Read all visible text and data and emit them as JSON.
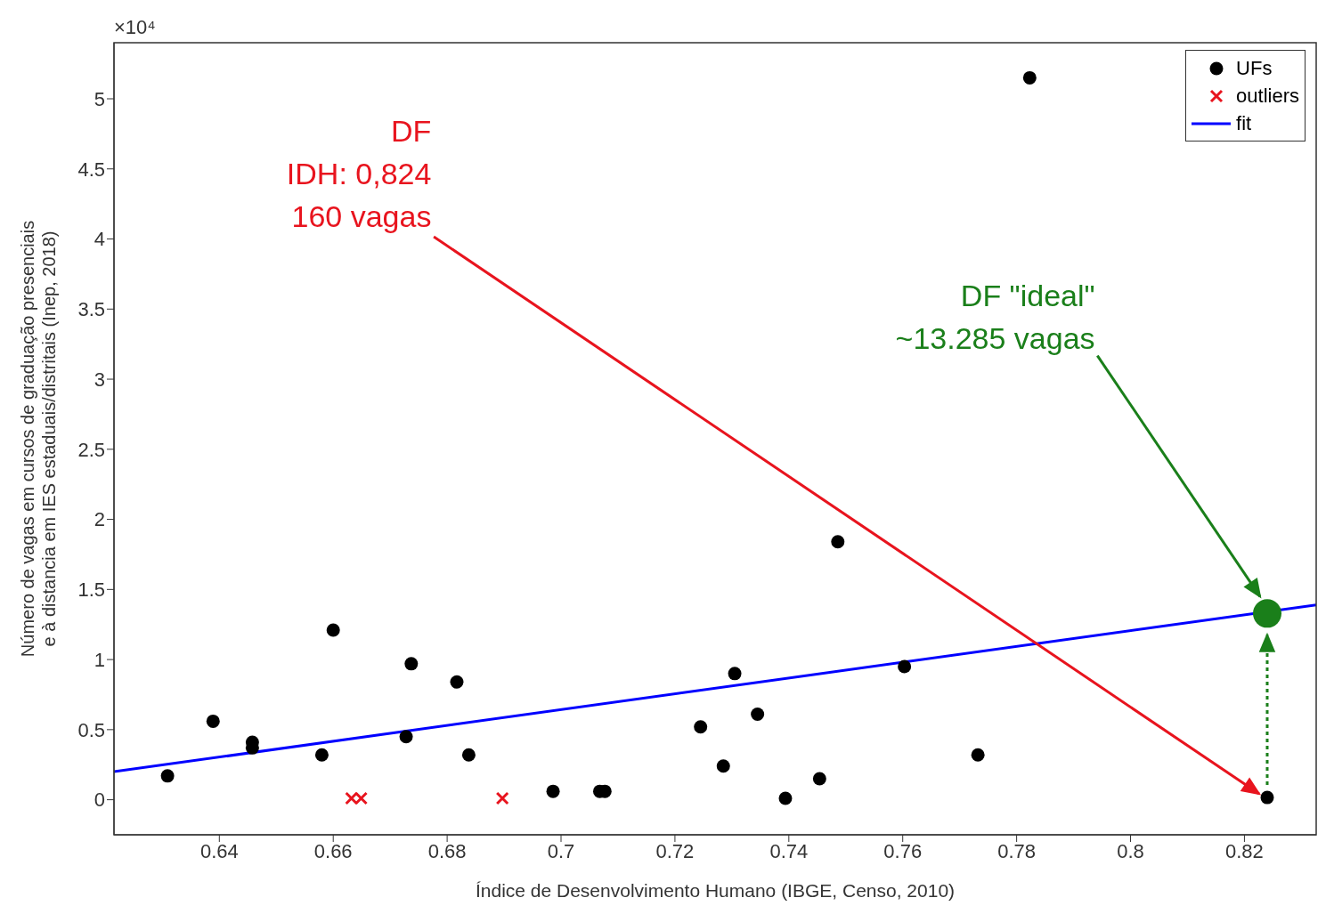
{
  "chart_data": {
    "type": "scatter",
    "xlabel": "Índice de Desenvolvimento Humano (IBGE, Censo, 2010)",
    "ylabel": "Número de vagas em cursos de graduação presenciais\ne à distancia em IES estaduais/distritais (Inep, 2018)",
    "xlim": [
      0.6215,
      0.8326
    ],
    "xticks": [
      0.64,
      0.66,
      0.68,
      0.7,
      0.72,
      0.74,
      0.76,
      0.78,
      0.8,
      0.82
    ],
    "ylim": [
      -0.25,
      5.4
    ],
    "yticks": [
      0,
      0.5,
      1,
      1.5,
      2,
      2.5,
      3,
      3.5,
      4,
      4.5,
      5
    ],
    "series": [
      {
        "name": "UFs",
        "marker": "circle",
        "color": "#000000",
        "x": [
          0.6309,
          0.6389,
          0.6458,
          0.6458,
          0.658,
          0.66,
          0.6728,
          0.6737,
          0.6817,
          0.6838,
          0.6986,
          0.7068,
          0.7077,
          0.7245,
          0.7285,
          0.7305,
          0.7345,
          0.7394,
          0.7454,
          0.7486,
          0.7603,
          0.7732,
          0.7823,
          0.824
        ],
        "values": [
          0.17,
          0.56,
          0.41,
          0.37,
          0.32,
          1.21,
          0.45,
          0.97,
          0.84,
          0.32,
          0.06,
          0.06,
          0.06,
          0.52,
          0.24,
          0.9,
          0.61,
          0.01,
          0.15,
          1.84,
          0.95,
          0.32,
          5.15,
          0.016
        ]
      },
      {
        "name": "outliers",
        "marker": "cross",
        "color": "#e8141e",
        "x": [
          0.6632,
          0.6649,
          0.6897
        ],
        "values": [
          0.01,
          0.01,
          0.01
        ]
      },
      {
        "name": "fit",
        "type": "line",
        "color": "#0000ff",
        "x": [
          0.6215,
          0.8326
        ],
        "values": [
          0.2,
          1.39
        ]
      },
      {
        "marker": "circle",
        "color": "#1a7f1a",
        "x": [
          0.824
        ],
        "values": [
          1.3285
        ]
      }
    ],
    "annotations": [
      "DF\nIDH: 0,824\n160 vagas",
      "DF \"ideal\"\n~13.285 vagas",
      "×10⁴"
    ],
    "legend": "top right"
  }
}
